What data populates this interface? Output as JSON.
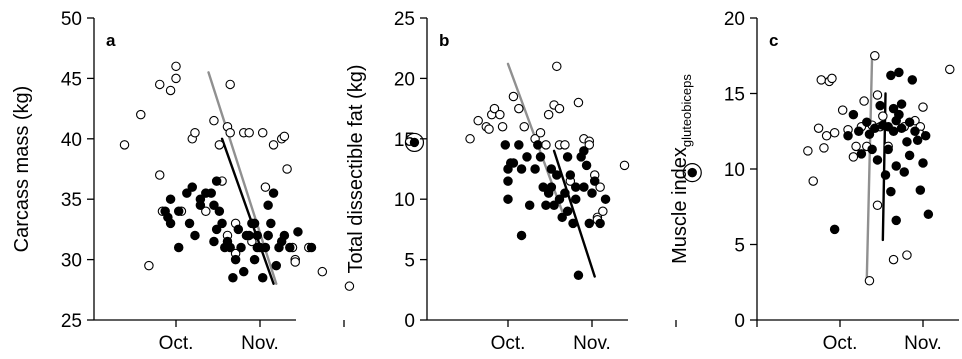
{
  "chart_data": [
    {
      "type": "scatter",
      "panel_label": "a",
      "ylabel": "Carcass mass (kg)",
      "ylim": [
        25,
        50
      ],
      "yticks": [
        25,
        30,
        35,
        40,
        45,
        50
      ],
      "x_tick_labels": [
        "Oct.",
        "Nov."
      ],
      "series": [
        {
          "marker": "open-circle",
          "color": "#000000",
          "points": [
            [
              -19,
              39.5
            ],
            [
              -13,
              42
            ],
            [
              -10,
              29.5
            ],
            [
              -6,
              37
            ],
            [
              -5,
              34
            ],
            [
              -6,
              44.5
            ],
            [
              -2,
              44
            ],
            [
              0,
              46
            ],
            [
              0,
              45
            ],
            [
              6,
              40
            ],
            [
              7,
              40.5
            ],
            [
              14,
              41.5
            ],
            [
              16,
              39.5
            ],
            [
              17,
              36.5
            ],
            [
              19,
              41
            ],
            [
              20,
              44.5
            ],
            [
              20,
              40.5
            ],
            [
              22,
              33
            ],
            [
              25,
              40.5
            ],
            [
              27,
              40.5
            ],
            [
              32,
              40.5
            ],
            [
              33,
              36
            ],
            [
              34,
              32
            ],
            [
              36,
              39.5
            ],
            [
              39,
              40
            ],
            [
              40,
              40.2
            ],
            [
              41,
              37.5
            ],
            [
              43,
              31
            ],
            [
              44,
              30
            ],
            [
              44,
              29.8
            ],
            [
              49,
              31
            ],
            [
              54,
              29
            ],
            [
              64,
              27.8
            ],
            [
              2,
              34
            ],
            [
              11,
              34
            ],
            [
              19,
              32
            ],
            [
              22,
              30.5
            ],
            [
              28,
              31.5
            ]
          ]
        },
        {
          "marker": "filled-circle",
          "color": "#000000",
          "points": [
            [
              -4,
              34
            ],
            [
              -3,
              33.5
            ],
            [
              -2,
              33
            ],
            [
              -2,
              35
            ],
            [
              1,
              34
            ],
            [
              1,
              31
            ],
            [
              4,
              35.5
            ],
            [
              5,
              33
            ],
            [
              6,
              36
            ],
            [
              7,
              32
            ],
            [
              9,
              34.5
            ],
            [
              9,
              35
            ],
            [
              11,
              35.5
            ],
            [
              13,
              35.5
            ],
            [
              14,
              34.5
            ],
            [
              14,
              31.5
            ],
            [
              15,
              32.5
            ],
            [
              15,
              36.5
            ],
            [
              16,
              34
            ],
            [
              17,
              33
            ],
            [
              18,
              31
            ],
            [
              19,
              31.5
            ],
            [
              20,
              31
            ],
            [
              21,
              28.5
            ],
            [
              22,
              30
            ],
            [
              23,
              32.5
            ],
            [
              24,
              31
            ],
            [
              25,
              29
            ],
            [
              26,
              32
            ],
            [
              27,
              32
            ],
            [
              28,
              33
            ],
            [
              29,
              33
            ],
            [
              29,
              30
            ],
            [
              30,
              31
            ],
            [
              30,
              32
            ],
            [
              31,
              31
            ],
            [
              32,
              28.5
            ],
            [
              33,
              31
            ],
            [
              34,
              34.5
            ],
            [
              34,
              32
            ],
            [
              35,
              33
            ],
            [
              36,
              35.5
            ],
            [
              37,
              29.5
            ],
            [
              38,
              31
            ],
            [
              39,
              31.5
            ],
            [
              40,
              32
            ],
            [
              42,
              31
            ],
            [
              45,
              32.3
            ],
            [
              50,
              31
            ]
          ]
        }
      ],
      "lines": [
        {
          "color": "#909090",
          "from": [
            12,
            45.5
          ],
          "to": [
            37,
            28
          ]
        },
        {
          "color": "#000000",
          "from": [
            17,
            40
          ],
          "to": [
            36,
            28
          ]
        }
      ],
      "highlighted_point": [
        88,
        39.7
      ]
    },
    {
      "type": "scatter",
      "panel_label": "b",
      "ylabel": "Total dissectible fat (kg)",
      "ylim": [
        0,
        25
      ],
      "yticks": [
        0,
        5,
        10,
        15,
        20,
        25
      ],
      "x_tick_labels": [
        "Oct.",
        "Nov."
      ],
      "series": [
        {
          "marker": "open-circle",
          "color": "#000000",
          "points": [
            [
              -14,
              15
            ],
            [
              -11,
              16.5
            ],
            [
              -8,
              16
            ],
            [
              -7,
              15.8
            ],
            [
              -6,
              17
            ],
            [
              -5,
              17.5
            ],
            [
              -3,
              17
            ],
            [
              -2,
              16
            ],
            [
              2,
              18.5
            ],
            [
              4,
              17.5
            ],
            [
              6,
              16
            ],
            [
              10,
              15
            ],
            [
              12,
              15.5
            ],
            [
              14,
              14.5
            ],
            [
              15,
              17
            ],
            [
              17,
              17.8
            ],
            [
              18,
              21
            ],
            [
              19,
              14.5
            ],
            [
              19,
              17.5
            ],
            [
              21,
              14.5
            ],
            [
              23,
              11.5
            ],
            [
              26,
              18
            ],
            [
              28,
              15
            ],
            [
              30,
              14.8
            ],
            [
              30,
              14.5
            ],
            [
              32,
              12
            ],
            [
              33,
              8.5
            ],
            [
              33,
              8.3
            ],
            [
              34,
              11
            ],
            [
              35,
              9
            ],
            [
              43,
              12.8
            ]
          ]
        },
        {
          "marker": "filled-circle",
          "color": "#000000",
          "points": [
            [
              -1,
              14.5
            ],
            [
              0,
              12.5
            ],
            [
              0,
              11.5
            ],
            [
              0,
              10
            ],
            [
              1,
              13
            ],
            [
              2,
              13
            ],
            [
              4,
              14.5
            ],
            [
              5,
              12.5
            ],
            [
              7,
              13.5
            ],
            [
              8,
              9.5
            ],
            [
              10,
              12.5
            ],
            [
              11,
              14.5
            ],
            [
              12,
              13.5
            ],
            [
              13,
              11
            ],
            [
              14,
              9.5
            ],
            [
              15,
              10.5
            ],
            [
              16,
              12.5
            ],
            [
              16,
              11
            ],
            [
              17,
              9.5
            ],
            [
              18,
              12
            ],
            [
              19,
              10
            ],
            [
              20,
              8.5
            ],
            [
              21,
              10.5
            ],
            [
              22,
              9
            ],
            [
              22,
              13.5
            ],
            [
              23,
              12
            ],
            [
              24,
              8
            ],
            [
              25,
              10
            ],
            [
              25,
              11
            ],
            [
              27,
              13.5
            ],
            [
              28,
              11
            ],
            [
              28,
              14
            ],
            [
              29,
              12.8
            ],
            [
              30,
              8
            ],
            [
              31,
              10.5
            ],
            [
              32,
              11.5
            ],
            [
              34,
              8
            ],
            [
              36,
              10
            ],
            [
              5,
              7
            ],
            [
              26,
              3.7
            ]
          ]
        }
      ],
      "lines": [
        {
          "color": "#909090",
          "from": [
            0,
            21.2
          ],
          "to": [
            20,
            9
          ]
        },
        {
          "color": "#000000",
          "from": [
            17,
            14
          ],
          "to": [
            32,
            3.6
          ]
        }
      ],
      "highlighted_point": [
        68,
        12.2
      ]
    },
    {
      "type": "scatter",
      "panel_label": "c",
      "ylabel": "Muscle index",
      "ylabel_subscript": "gluteobiceps",
      "ylim": [
        0,
        20
      ],
      "yticks": [
        0,
        5,
        10,
        15,
        20
      ],
      "x_tick_labels": [
        "Oct.",
        "Nov."
      ],
      "series": [
        {
          "marker": "open-circle",
          "color": "#000000",
          "points": [
            [
              -12,
              11.2
            ],
            [
              -10,
              9.2
            ],
            [
              -8,
              12.7
            ],
            [
              -7,
              15.9
            ],
            [
              -6,
              11.4
            ],
            [
              -5,
              12.2
            ],
            [
              -4,
              15.8
            ],
            [
              -3,
              16
            ],
            [
              -2,
              12.4
            ],
            [
              1,
              13.9
            ],
            [
              3,
              12.6
            ],
            [
              5,
              10.8
            ],
            [
              6,
              11.5
            ],
            [
              8,
              12.8
            ],
            [
              9,
              14.5
            ],
            [
              10,
              11.5
            ],
            [
              11,
              2.6
            ],
            [
              12,
              12.9
            ],
            [
              13,
              17.5
            ],
            [
              14,
              14.9
            ],
            [
              14,
              7.6
            ],
            [
              15,
              12.8
            ],
            [
              16,
              13.5
            ],
            [
              18,
              11.5
            ],
            [
              20,
              4
            ],
            [
              22,
              13.6
            ],
            [
              24,
              12.8
            ],
            [
              25,
              4.3
            ],
            [
              28,
              13.2
            ],
            [
              30,
              12.8
            ],
            [
              30,
              12.3
            ],
            [
              31,
              14.1
            ],
            [
              41,
              16.6
            ]
          ]
        },
        {
          "marker": "filled-circle",
          "color": "#000000",
          "points": [
            [
              -2,
              6
            ],
            [
              3,
              12.2
            ],
            [
              5,
              13.6
            ],
            [
              7,
              12.5
            ],
            [
              8,
              11
            ],
            [
              10,
              13.1
            ],
            [
              11,
              12.3
            ],
            [
              12,
              11.3
            ],
            [
              13,
              12.7
            ],
            [
              14,
              10.6
            ],
            [
              15,
              14.2
            ],
            [
              16,
              12.9
            ],
            [
              17,
              9.6
            ],
            [
              18,
              12.8
            ],
            [
              18,
              11.3
            ],
            [
              19,
              16.2
            ],
            [
              19,
              8.5
            ],
            [
              20,
              14
            ],
            [
              20,
              12.5
            ],
            [
              21,
              13.2
            ],
            [
              21,
              10.2
            ],
            [
              22,
              13.6
            ],
            [
              22,
              16.4
            ],
            [
              23,
              14.3
            ],
            [
              23,
              12.7
            ],
            [
              24,
              9.8
            ],
            [
              25,
              11.8
            ],
            [
              26,
              13.1
            ],
            [
              26,
              10.9
            ],
            [
              27,
              15.9
            ],
            [
              28,
              12.5
            ],
            [
              29,
              11.9
            ],
            [
              30,
              8.6
            ],
            [
              31,
              10.4
            ],
            [
              32,
              12.2
            ],
            [
              33,
              7
            ],
            [
              21,
              6.6
            ]
          ]
        }
      ],
      "lines": [
        {
          "color": "#909090",
          "from": [
            10,
            2.7
          ],
          "to": [
            12,
            17.6
          ]
        },
        {
          "color": "#000000",
          "from": [
            16,
            5.3
          ],
          "to": [
            17,
            15
          ]
        }
      ],
      "highlighted_point": [
        50,
        5.3
      ]
    }
  ]
}
